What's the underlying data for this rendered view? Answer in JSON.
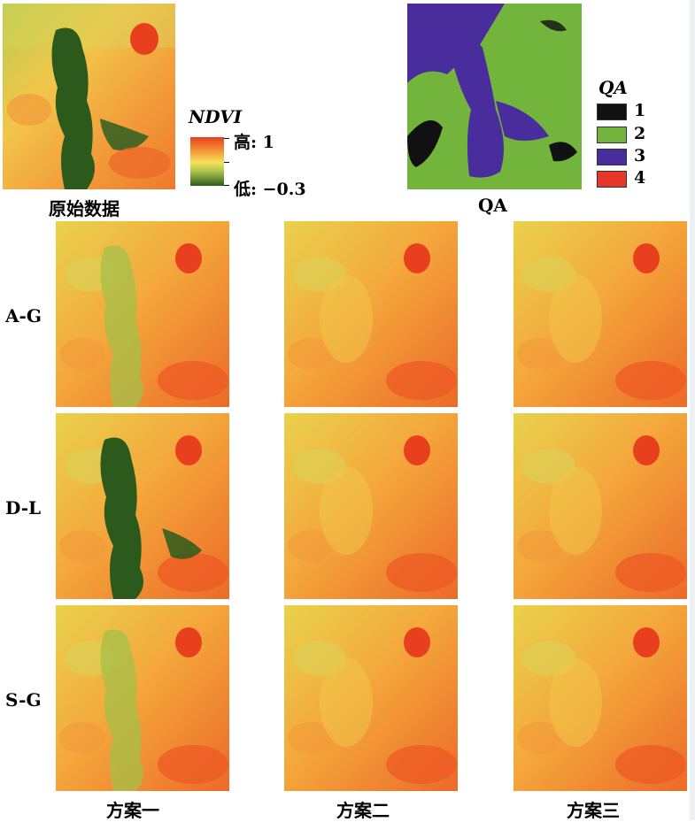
{
  "colors": {
    "ndvi_high": "#e8401e",
    "ndvi_mid_high": "#f49a3a",
    "ndvi_mid": "#f7e25a",
    "ndvi_mid_low": "#a4c04a",
    "ndvi_low": "#2c5a1c",
    "qa_1": "#111111",
    "qa_2": "#72b43c",
    "qa_3": "#4a2d9c",
    "qa_4": "#e8362a"
  },
  "top": {
    "original_caption": "原始数据",
    "qa_caption": "QA"
  },
  "ndvi_legend": {
    "title": "NDVI",
    "high": "高: 1",
    "low": "低: −0.3"
  },
  "qa_legend": {
    "title": "QA",
    "items": [
      {
        "label": "1",
        "color": "#111111"
      },
      {
        "label": "2",
        "color": "#72b43c"
      },
      {
        "label": "3",
        "color": "#4a2d9c"
      },
      {
        "label": "4",
        "color": "#e8362a"
      }
    ]
  },
  "grid": {
    "rows": [
      "A-G",
      "D-L",
      "S-G"
    ],
    "columns": [
      "方案一",
      "方案二",
      "方案三"
    ]
  }
}
